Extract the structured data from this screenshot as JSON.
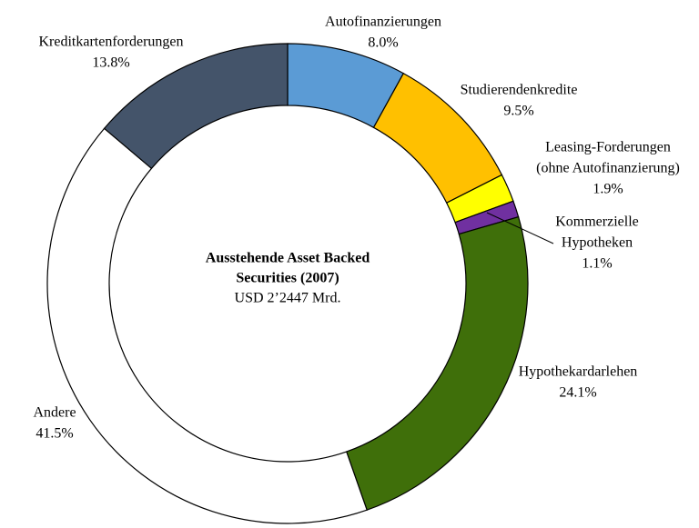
{
  "chart_data": {
    "type": "donut",
    "title": [
      "Ausstehende Asset Backed",
      "Securities (2007)"
    ],
    "subtitle": "USD 2’2447 Mrd.",
    "categories": [
      [
        "Autofinanzierungen"
      ],
      [
        "Studierendenkredite"
      ],
      [
        "Leasing-Forderungen",
        "(ohne Autofinanzierung)"
      ],
      [
        "Kommerzielle",
        "Hypotheken"
      ],
      [
        "Hypothekardarlehen"
      ],
      [
        "Andere"
      ],
      [
        "Kreditkartenforderungen"
      ]
    ],
    "values": [
      8.0,
      9.5,
      1.9,
      1.1,
      24.1,
      41.5,
      13.8
    ],
    "value_labels": [
      "8.0%",
      "9.5%",
      "1.9%",
      "1.1%",
      "24.1%",
      "41.5%",
      "13.8%"
    ],
    "colors": [
      "#5b9bd5",
      "#ffc000",
      "#ffff00",
      "#7030a0",
      "#3f6f0a",
      "#ffffff",
      "#44546a"
    ]
  }
}
